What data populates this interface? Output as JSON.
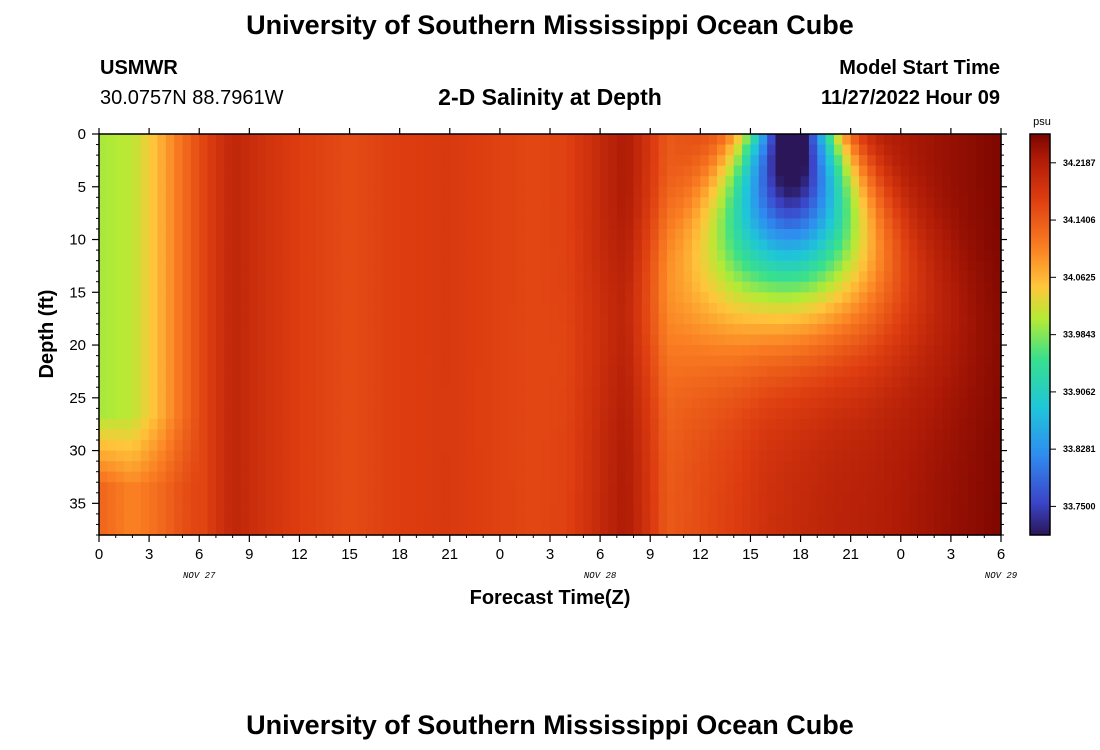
{
  "header": {
    "title": "University of Southern Mississippi Ocean Cube",
    "station": "USMWR",
    "coords": "30.0757N  88.7961W",
    "subtitle": "2-D Salinity at Depth",
    "model_label": "Model Start Time",
    "model_time": "11/27/2022 Hour 09"
  },
  "footer": {
    "title": "University of Southern Mississippi Ocean Cube"
  },
  "chart_data": {
    "type": "heatmap",
    "title": "2-D Salinity at Depth",
    "xlabel": "Forecast Time(Z)",
    "ylabel": "Depth (ft)",
    "x_tick_labels": [
      "0",
      "3",
      "6",
      "9",
      "12",
      "15",
      "18",
      "21",
      "0",
      "3",
      "6",
      "9",
      "12",
      "15",
      "18",
      "21",
      "0",
      "3",
      "6"
    ],
    "x_date_labels": [
      {
        "label": "NOV 27",
        "hour": 6
      },
      {
        "label": "NOV 28",
        "hour": 30
      },
      {
        "label": "NOV 29",
        "hour": 54
      }
    ],
    "xlim_hours": [
      0,
      54
    ],
    "y_ticks": [
      0,
      5,
      10,
      15,
      20,
      25,
      30,
      35
    ],
    "ylim": [
      0,
      38
    ],
    "colorbar": {
      "unit": "psu",
      "range": [
        33.711,
        34.258
      ],
      "ticks": [
        "34.2187",
        "34.1406",
        "34.0625",
        "33.9843",
        "33.9062",
        "33.8281",
        "33.7500"
      ],
      "tick_values": [
        34.2187,
        34.1406,
        34.0625,
        33.9843,
        33.9062,
        33.8281,
        33.75
      ]
    },
    "grid": false,
    "legend": "colorbar-right"
  }
}
